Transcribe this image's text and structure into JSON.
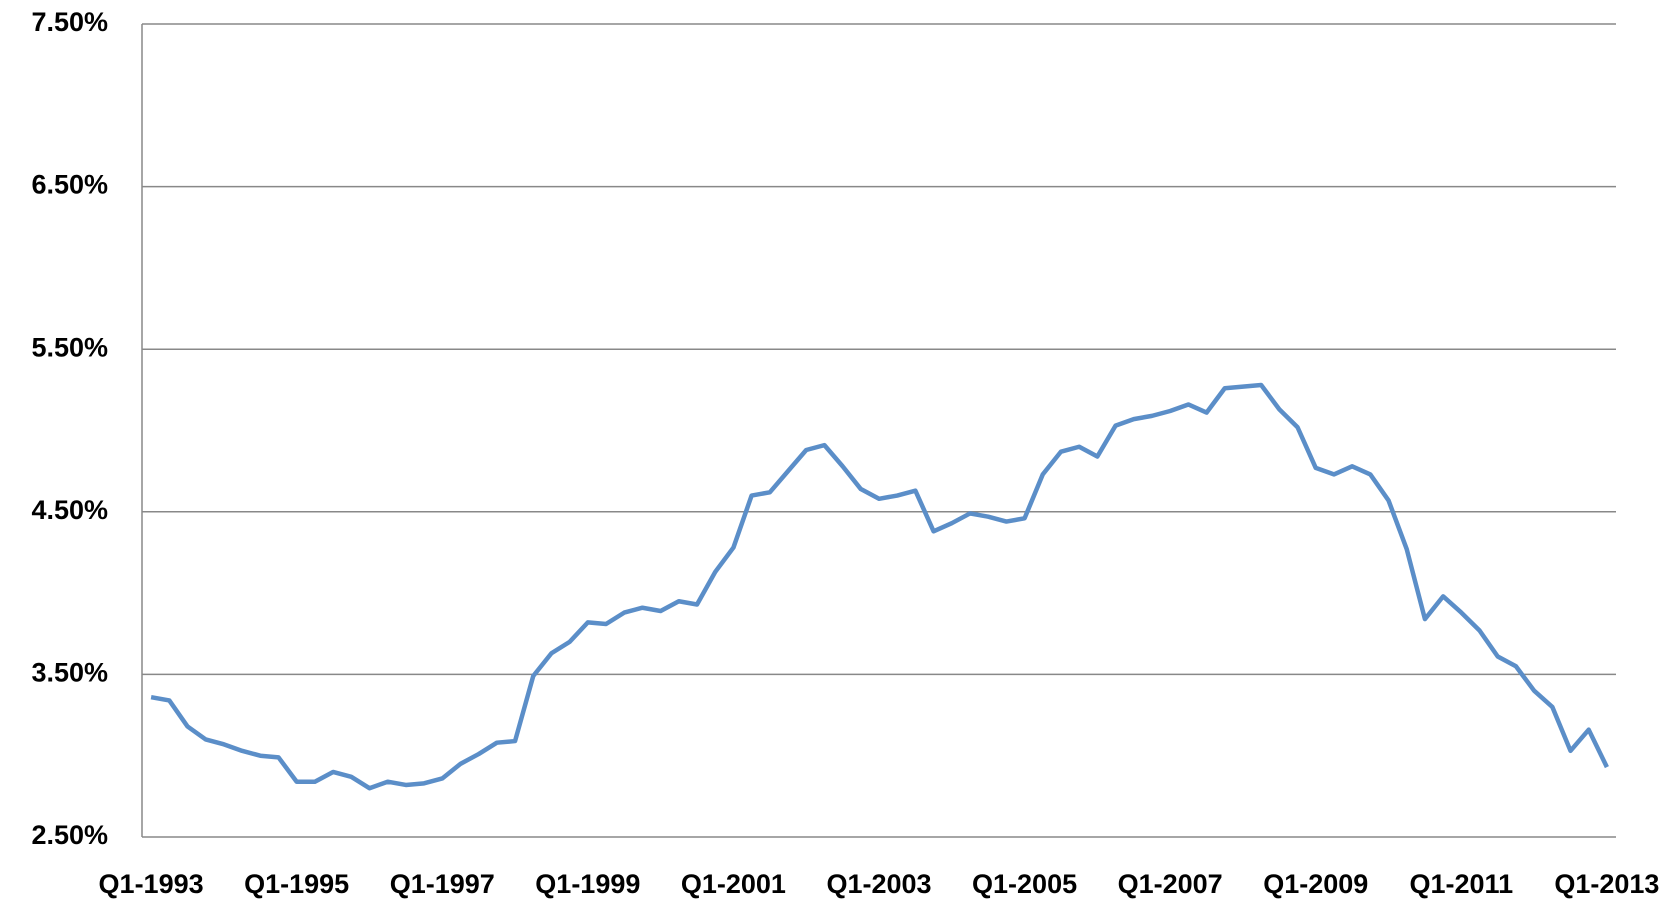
{
  "chart_data": {
    "type": "line",
    "categories": [
      "Q1-1993",
      null,
      null,
      null,
      null,
      null,
      null,
      null,
      "Q1-1995",
      null,
      null,
      null,
      null,
      null,
      null,
      null,
      "Q1-1997",
      null,
      null,
      null,
      null,
      null,
      null,
      null,
      "Q1-1999",
      null,
      null,
      null,
      null,
      null,
      null,
      null,
      "Q1-2001",
      null,
      null,
      null,
      null,
      null,
      null,
      null,
      "Q1-2003",
      null,
      null,
      null,
      null,
      null,
      null,
      null,
      "Q1-2005",
      null,
      null,
      null,
      null,
      null,
      null,
      null,
      "Q1-2007",
      null,
      null,
      null,
      null,
      null,
      null,
      null,
      "Q1-2009",
      null,
      null,
      null,
      null,
      null,
      null,
      null,
      "Q1-2011",
      null,
      null,
      null,
      null,
      null,
      null,
      null,
      "Q1-2013"
    ],
    "values": [
      3.36,
      3.34,
      3.18,
      3.1,
      3.07,
      3.03,
      3.0,
      2.99,
      2.84,
      2.84,
      2.9,
      2.87,
      2.8,
      2.84,
      2.82,
      2.83,
      2.86,
      2.95,
      3.01,
      3.08,
      3.09,
      3.49,
      3.63,
      3.7,
      3.82,
      3.81,
      3.88,
      3.91,
      3.89,
      3.95,
      3.93,
      4.13,
      4.28,
      4.6,
      4.62,
      4.75,
      4.88,
      4.91,
      4.78,
      4.64,
      4.58,
      4.6,
      4.63,
      4.38,
      4.43,
      4.49,
      4.47,
      4.44,
      4.46,
      4.73,
      4.87,
      4.9,
      4.84,
      5.03,
      5.07,
      5.09,
      5.12,
      5.16,
      5.11,
      5.26,
      5.27,
      5.28,
      5.13,
      5.02,
      4.77,
      4.73,
      4.78,
      4.73,
      4.57,
      4.27,
      3.84,
      3.98,
      3.88,
      3.77,
      3.61,
      3.55,
      3.4,
      3.3,
      3.03,
      3.16,
      2.93
    ],
    "color": "#5b8ec8",
    "ylim": [
      2.5,
      7.5
    ],
    "yticks": [
      {
        "value": 2.5,
        "label": "2.50%"
      },
      {
        "value": 3.5,
        "label": "3.50%"
      },
      {
        "value": 4.5,
        "label": "4.50%"
      },
      {
        "value": 5.5,
        "label": "5.50%"
      },
      {
        "value": 6.5,
        "label": "6.50%"
      },
      {
        "value": 7.5,
        "label": "7.50%"
      }
    ],
    "grid": true
  }
}
